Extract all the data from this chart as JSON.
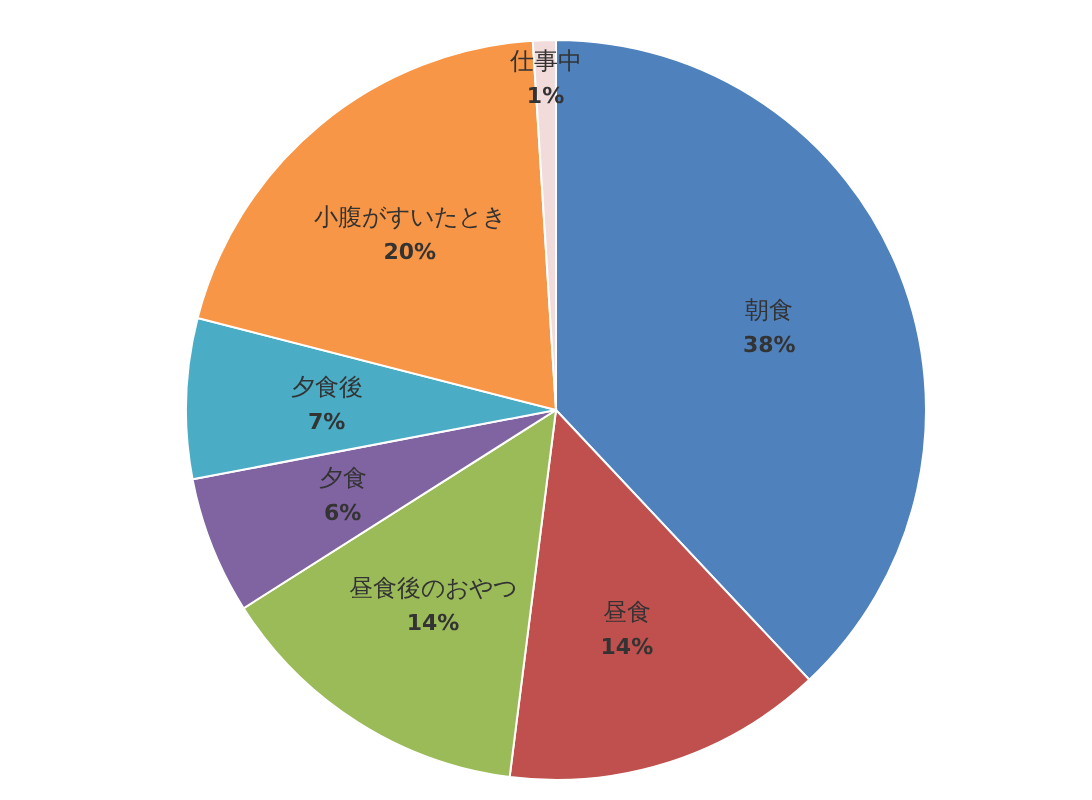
{
  "chart_data": {
    "type": "pie",
    "categories": [
      "朝食",
      "昼食",
      "昼食後のおやつ",
      "夕食",
      "夕食後",
      "小腹がすいたとき",
      "仕事中"
    ],
    "values": [
      38,
      14,
      14,
      6,
      7,
      20,
      1
    ],
    "value_labels": [
      "38%",
      "14%",
      "14%",
      "6%",
      "7%",
      "20%",
      "1%"
    ],
    "colors": [
      "#4f81bd",
      "#c0504d",
      "#9bbb59",
      "#8064a2",
      "#4bacc6",
      "#f79646",
      "#f2dcdb"
    ],
    "legend": false
  }
}
